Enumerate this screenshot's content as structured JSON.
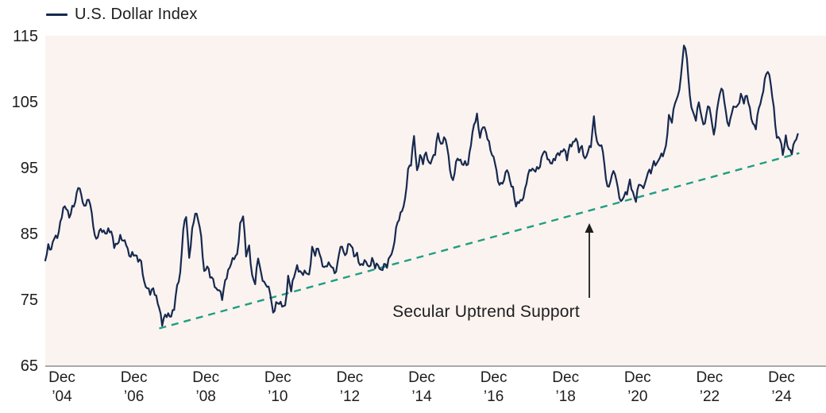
{
  "legend": {
    "label": "U.S. Dollar Index",
    "line_color": "#16294e"
  },
  "colors": {
    "price_line": "#16294e",
    "support_line": "#1f9e82",
    "plot_background": "#fbf3f0",
    "axis_line": "#a9a9a9",
    "text": "#1d1d1d"
  },
  "chart_data": {
    "type": "line",
    "title": "",
    "legend_position": "top-left",
    "grid": false,
    "ylim": [
      65,
      115
    ],
    "yticks": [
      115,
      105,
      95,
      85,
      75,
      65
    ],
    "xtick_labels": [
      {
        "line1": "Dec",
        "line2": "’04"
      },
      {
        "line1": "Dec",
        "line2": "’06"
      },
      {
        "line1": "Dec",
        "line2": "’08"
      },
      {
        "line1": "Dec",
        "line2": "’10"
      },
      {
        "line1": "Dec",
        "line2": "’12"
      },
      {
        "line1": "Dec",
        "line2": "’14"
      },
      {
        "line1": "Dec",
        "line2": "’16"
      },
      {
        "line1": "Dec",
        "line2": "’18"
      },
      {
        "line1": "Dec",
        "line2": "’20"
      },
      {
        "line1": "Dec",
        "line2": "’22"
      },
      {
        "line1": "Dec",
        "line2": "’24"
      }
    ],
    "series": [
      {
        "name": "U.S. Dollar Index",
        "start": "2004-12",
        "frequency": "monthly",
        "values": [
          80.9,
          83.4,
          82.6,
          84.2,
          84.3,
          86.8,
          88.9,
          88.7,
          87.4,
          89.2,
          89.8,
          91.9,
          90.9,
          89.2,
          90.1,
          89.4,
          86.1,
          84.2,
          85.4,
          85.2,
          85.0,
          85.8,
          85.3,
          82.8,
          83.4,
          84.8,
          83.9,
          83.2,
          81.6,
          82.2,
          81.7,
          80.7,
          80.8,
          77.7,
          76.7,
          75.7,
          76.7,
          75.6,
          73.7,
          71.0,
          72.7,
          72.9,
          72.4,
          73.4,
          77.2,
          79.1,
          85.5,
          87.5,
          81.3,
          85.8,
          88.0,
          87.0,
          84.6,
          79.3,
          80.0,
          78.3,
          78.1,
          76.7,
          76.4,
          74.9,
          77.9,
          79.5,
          80.4,
          81.1,
          81.9,
          86.6,
          87.6,
          81.5,
          83.2,
          78.7,
          77.3,
          81.2,
          79.0,
          77.7,
          76.9,
          75.9,
          73.0,
          74.6,
          74.3,
          73.9,
          74.1,
          78.6,
          76.2,
          78.4,
          80.2,
          79.3,
          78.7,
          79.0,
          78.8,
          83.0,
          81.6,
          82.7,
          81.2,
          79.9,
          80.0,
          80.2,
          79.8,
          79.2,
          81.9,
          83.0,
          81.7,
          83.4,
          83.1,
          81.5,
          82.1,
          80.2,
          80.2,
          80.7,
          80.0,
          81.3,
          79.7,
          80.2,
          79.5,
          80.4,
          79.8,
          81.5,
          82.7,
          85.9,
          87.0,
          88.4,
          90.3,
          94.8,
          95.3,
          99.8,
          94.6,
          96.9,
          95.5,
          97.3,
          95.8,
          96.3,
          96.9,
          100.2,
          98.6,
          99.6,
          98.2,
          94.6,
          93.1,
          95.9,
          96.1,
          95.5,
          96.0,
          95.5,
          98.4,
          101.5,
          103.2,
          99.5,
          101.1,
          100.4,
          99.0,
          96.9,
          95.6,
          92.9,
          92.7,
          93.1,
          94.6,
          93.0,
          92.1,
          89.1,
          89.6,
          90.0,
          91.8,
          93.9,
          94.5,
          94.6,
          95.1,
          95.1,
          97.1,
          97.3,
          96.2,
          95.6,
          96.1,
          97.2,
          97.5,
          97.8,
          96.1,
          98.5,
          98.9,
          99.4,
          97.3,
          98.3,
          96.4,
          97.4,
          98.1,
          102.8,
          99.0,
          98.3,
          97.4,
          93.3,
          92.1,
          93.9,
          94.0,
          91.9,
          89.9,
          90.6,
          90.9,
          93.2,
          91.3,
          89.8,
          92.4,
          92.2,
          92.6,
          94.2,
          94.1,
          96.0,
          95.7,
          96.5,
          96.7,
          98.3,
          103.0,
          101.8,
          104.7,
          105.9,
          108.8,
          113.5,
          111.5,
          105.9,
          103.5,
          102.1,
          104.9,
          102.5,
          101.7,
          104.3,
          102.9,
          100.0,
          103.6,
          106.2,
          106.7,
          103.5,
          101.3,
          103.3,
          104.2,
          104.5,
          106.2,
          104.7,
          105.9,
          104.1,
          101.7,
          100.8,
          104.0,
          105.7,
          108.5,
          109.5,
          107.6,
          104.2,
          99.5,
          99.3,
          96.9,
          99.9,
          97.8,
          97.0,
          99.0,
          100.1
        ]
      }
    ],
    "support_line": {
      "name": "Secular Uptrend Support",
      "style": "dashed",
      "start": {
        "month_index": 38,
        "value": 70.6
      },
      "end": {
        "month_index": 251.5,
        "value": 97.2
      }
    },
    "annotation": {
      "label": "Secular Uptrend Support",
      "text_x": 612,
      "text_y": 399,
      "arrow_x": 742,
      "arrow_tip_y": 281,
      "arrow_base_y": 375
    }
  }
}
